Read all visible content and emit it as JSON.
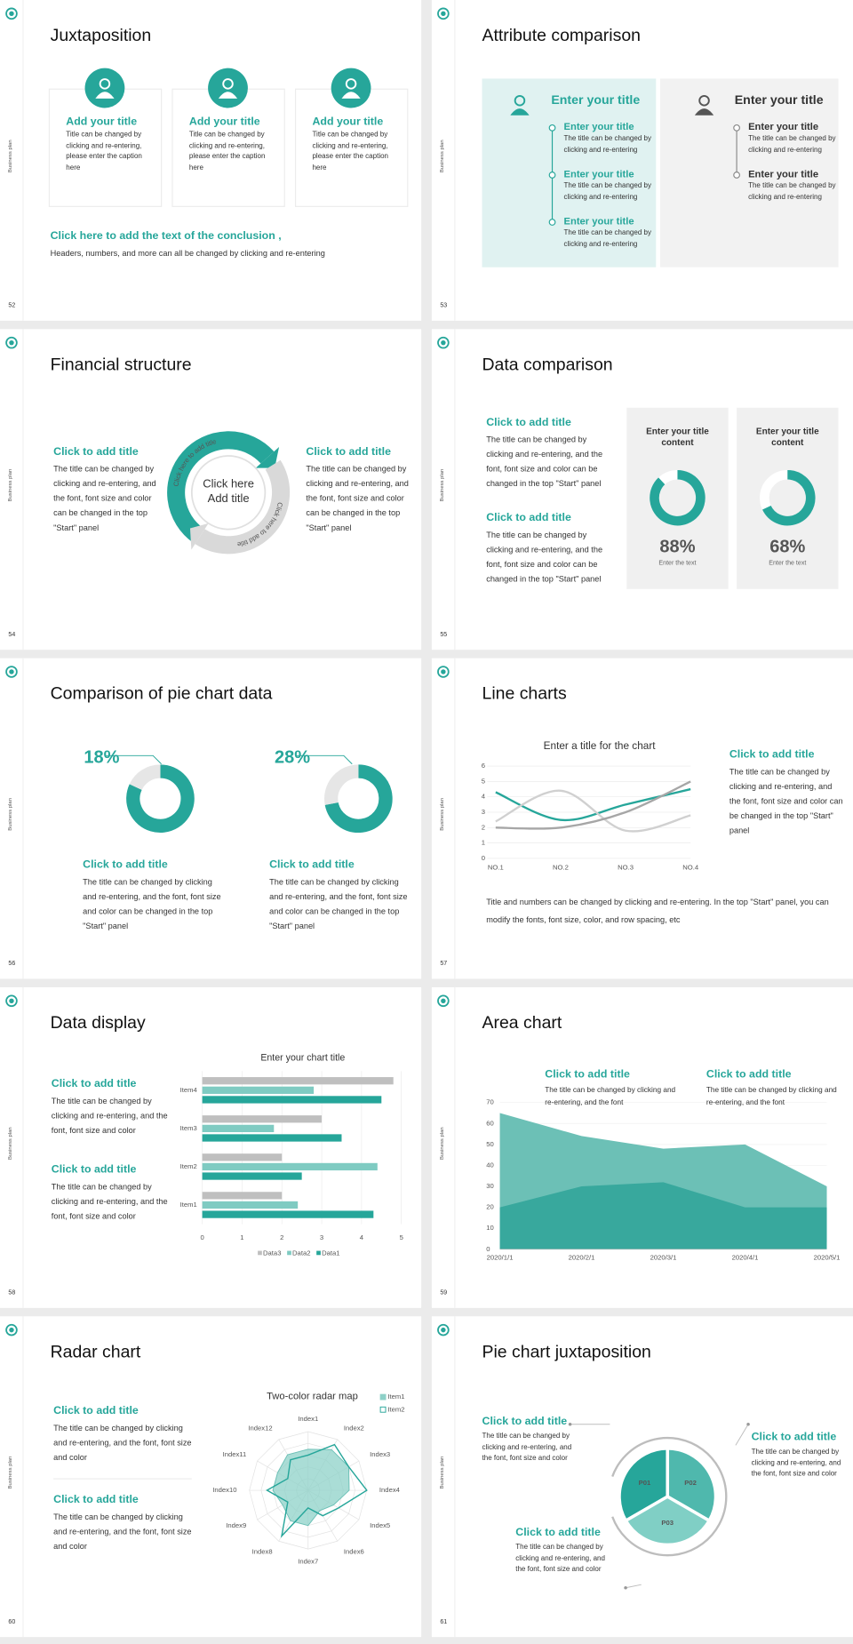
{
  "side_label": "Business plan",
  "slides": [
    {
      "number": "52",
      "title": "Juxtaposition",
      "cards": [
        {
          "title": "Add your title",
          "text": "Title can be changed by clicking and re-entering, please enter the caption here"
        },
        {
          "title": "Add your title",
          "text": "Title can be changed by clicking and re-entering, please enter the caption here"
        },
        {
          "title": "Add your title",
          "text": "Title can be changed by clicking and re-entering, please enter the caption here"
        }
      ],
      "conclusion": {
        "title": "Click here to add the text of the conclusion ,",
        "text": "Headers, numbers, and more can all be changed by clicking and re-entering"
      }
    },
    {
      "number": "53",
      "title": "Attribute comparison",
      "panels": [
        {
          "title": "Enter your title",
          "items": [
            {
              "title": "Enter your title",
              "text": "The title can be changed by clicking and re-entering"
            },
            {
              "title": "Enter your title",
              "text": "The title can be changed by clicking and re-entering"
            },
            {
              "title": "Enter your title",
              "text": "The title can be changed by clicking and re-entering"
            }
          ]
        },
        {
          "title": "Enter your title",
          "items": [
            {
              "title": "Enter your title",
              "text": "The title can be changed by clicking and re-entering"
            },
            {
              "title": "Enter your title",
              "text": "The title can be changed by clicking and re-entering"
            }
          ]
        }
      ]
    },
    {
      "number": "54",
      "title": "Financial structure",
      "blocks": [
        {
          "title": "Click to add title",
          "text": "The title can be changed by clicking and re-entering, and the font, font size and color can be changed in the top \"Start\" panel"
        },
        {
          "title": "Click to add title",
          "text": "The title can be changed by clicking and re-entering, and the font, font size and color can be changed in the top \"Start\" panel"
        }
      ],
      "center": "Click here Add title",
      "arc_labels": [
        "Click here to add title",
        "Click here to add title"
      ]
    },
    {
      "number": "55",
      "title": "Data comparison",
      "blocks": [
        {
          "title": "Click to add title",
          "text": "The title can be changed by clicking and re-entering, and the font, font size and color can be changed in the top \"Start\" panel"
        },
        {
          "title": "Click to add title",
          "text": "The title can be changed by clicking and re-entering, and the font, font size and color can be changed in the top \"Start\" panel"
        }
      ],
      "cards": [
        {
          "title": "Enter your title content",
          "value": 88,
          "value_label": "88%",
          "caption": "Enter the text"
        },
        {
          "title": "Enter your title content",
          "value": 68,
          "value_label": "68%",
          "caption": "Enter the text"
        }
      ]
    },
    {
      "number": "56",
      "title": "Comparison of pie chart data",
      "pies": [
        {
          "value": 18,
          "value_label": "18%",
          "title": "Click to add title",
          "text": "The title can be changed by clicking and re-entering, and the font, font size and color can be changed in the top \"Start\" panel"
        },
        {
          "value": 28,
          "value_label": "28%",
          "title": "Click to add title",
          "text": "The title can be changed by clicking and re-entering, and the font, font size and color can be changed in the top \"Start\" panel"
        }
      ]
    },
    {
      "number": "57",
      "title": "Line charts",
      "chart": {
        "type": "line",
        "title": "Enter a title for the chart",
        "categories": [
          "NO.1",
          "NO.2",
          "NO.3",
          "NO.4"
        ],
        "series": [
          {
            "color": "#26a69a",
            "values": [
              4.3,
              2.5,
              3.5,
              4.5
            ]
          },
          {
            "color": "#d0d0d0",
            "values": [
              2.4,
              4.4,
              1.8,
              2.8
            ]
          },
          {
            "color": "#a6a6a6",
            "values": [
              2,
              2,
              3,
              5
            ]
          }
        ],
        "ylim": [
          0,
          6
        ],
        "yticks": [
          0,
          1,
          2,
          3,
          4,
          5,
          6
        ],
        "grid": true
      },
      "block": {
        "title": "Click to add title",
        "text": "The title can be changed by clicking and re-entering, and the font, font size and color can be changed in the top \"Start\" panel"
      },
      "note": "Title and numbers can be changed by clicking and re-entering. In the top \"Start\" panel, you can modify the fonts, font size, color, and row spacing, etc"
    },
    {
      "number": "58",
      "title": "Data display",
      "chart": {
        "type": "bar",
        "title": "Enter your chart title",
        "categories": [
          "Item1",
          "Item2",
          "Item3",
          "Item4"
        ],
        "series": [
          {
            "name": "Data1",
            "color": "#26a69a",
            "values": [
              4.3,
              2.5,
              3.5,
              4.5
            ]
          },
          {
            "name": "Data2",
            "color": "#7fcbc2",
            "values": [
              2.4,
              4.4,
              1.8,
              2.8
            ]
          },
          {
            "name": "Data3",
            "color": "#bfbfbf",
            "values": [
              2,
              2,
              3,
              4.8
            ]
          }
        ],
        "xlim": [
          0,
          5
        ],
        "xticks": [
          0,
          1,
          2,
          3,
          4,
          5
        ],
        "grid": true
      },
      "blocks": [
        {
          "title": "Click to add title",
          "text": "The title can be changed by clicking and re-entering, and the font, font size and color"
        },
        {
          "title": "Click to add title",
          "text": "The title can be changed by clicking and re-entering, and the font, font size and color"
        }
      ]
    },
    {
      "number": "59",
      "title": "Area chart",
      "chart": {
        "type": "area",
        "x": [
          "2020/1/1",
          "2020/2/1",
          "2020/3/1",
          "2020/4/1",
          "2020/5/1"
        ],
        "series": [
          {
            "color": "#6cc0b6",
            "values": [
              65,
              54,
              48,
              50,
              30
            ]
          },
          {
            "color": "#38a89d",
            "values": [
              20,
              30,
              32,
              20,
              20
            ]
          }
        ],
        "ylim": [
          0,
          70
        ],
        "yticks": [
          0,
          10,
          20,
          30,
          40,
          50,
          60,
          70
        ],
        "grid": true
      },
      "blocks": [
        {
          "title": "Click to add title",
          "text": "The title can be changed by clicking and re-entering, and the font"
        },
        {
          "title": "Click to add title",
          "text": "The title can be changed by clicking and re-entering, and the font"
        }
      ]
    },
    {
      "number": "60",
      "title": "Radar chart",
      "chart": {
        "type": "radar",
        "title": "Two-color radar map",
        "categories": [
          "Index1",
          "Index2",
          "Index3",
          "Index4",
          "Index5",
          "Index6",
          "Index7",
          "Index8",
          "Index9",
          "Index10",
          "Index11",
          "Index12"
        ],
        "series": [
          {
            "name": "Item1",
            "color": "#8ed1c8",
            "values": [
              3.5,
              4,
              4,
              3.5,
              2.5,
              2,
              3,
              3,
              2.5,
              3,
              3,
              3.5
            ]
          },
          {
            "name": "Item2",
            "color": "#26a69a",
            "values": [
              3,
              4.5,
              4,
              5,
              3,
              2.5,
              1.5,
              4.5,
              2,
              3.5,
              2,
              3
            ]
          }
        ],
        "rlim": [
          0,
          5
        ],
        "rticks": [
          1,
          2,
          3,
          4,
          5
        ]
      },
      "blocks": [
        {
          "title": "Click to add title",
          "text": "The title can be changed by clicking and re-entering, and the font, font size and color"
        },
        {
          "title": "Click to add title",
          "text": "The title can be changed by clicking and re-entering, and the font, font size and color"
        }
      ]
    },
    {
      "number": "61",
      "title": "Pie chart juxtaposition",
      "segments": [
        "P01",
        "P02",
        "P03"
      ],
      "blocks": [
        {
          "title": "Click to add title",
          "text": "The title can be changed by clicking and re-entering, and the font, font size and color"
        },
        {
          "title": "Click to add title",
          "text": "The title can be changed by clicking and re-entering, and the font, font size and color"
        },
        {
          "title": "Click to add title",
          "text": "The title can be changed by clicking and re-entering, and the font, font size and color"
        }
      ]
    }
  ]
}
